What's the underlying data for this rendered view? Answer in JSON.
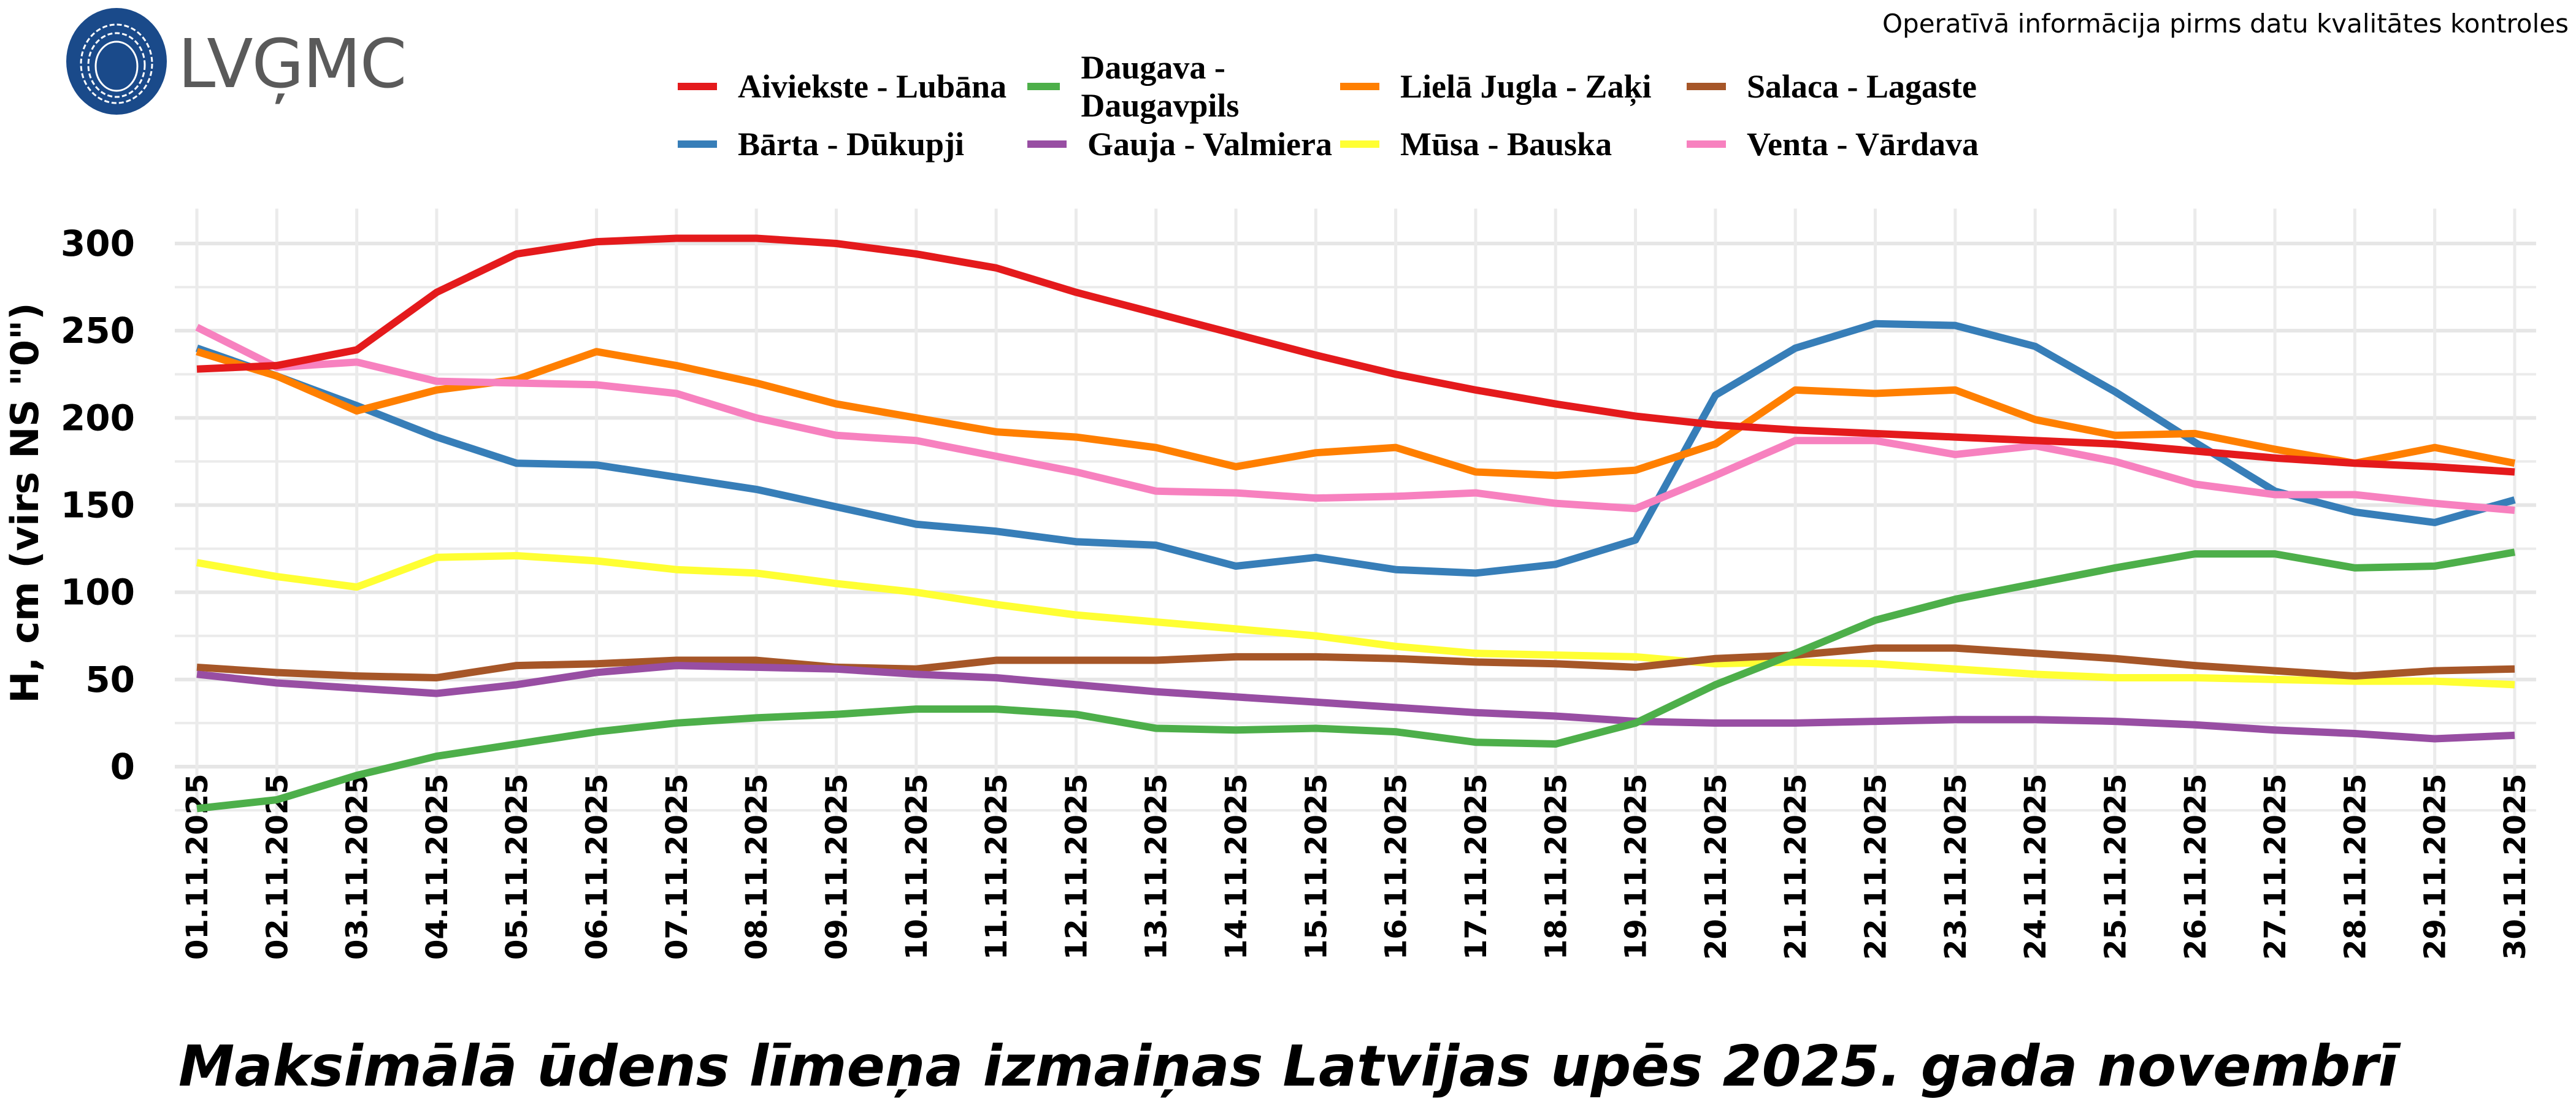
{
  "logo": {
    "text": "LVĢMC",
    "color": "#1a4a8a"
  },
  "note": "Operatīvā informācija pirms datu kvalitātes kontroles",
  "chart_data": {
    "type": "line",
    "title": "Maksimālā ūdens līmeņa izmaiņas Latvijas upēs 2025. gada novembrī",
    "xlabel": "",
    "ylabel": "H, cm (virs NS \"0\")",
    "ylim": [
      -25,
      320
    ],
    "yticks": [
      0,
      50,
      100,
      150,
      200,
      250,
      300
    ],
    "grid": true,
    "legend_position": "top",
    "categories": [
      "01.11.2025",
      "02.11.2025",
      "03.11.2025",
      "04.11.2025",
      "05.11.2025",
      "06.11.2025",
      "07.11.2025",
      "08.11.2025",
      "09.11.2025",
      "10.11.2025",
      "11.11.2025",
      "12.11.2025",
      "13.11.2025",
      "14.11.2025",
      "15.11.2025",
      "16.11.2025",
      "17.11.2025",
      "18.11.2025",
      "19.11.2025",
      "20.11.2025",
      "21.11.2025",
      "22.11.2025",
      "23.11.2025",
      "24.11.2025",
      "25.11.2025",
      "26.11.2025",
      "27.11.2025",
      "28.11.2025",
      "29.11.2025",
      "30.11.2025"
    ],
    "series": [
      {
        "name": "Aiviekste - Lubāna",
        "color": "#e41a1c",
        "values": [
          228,
          230,
          239,
          272,
          294,
          301,
          303,
          303,
          300,
          294,
          286,
          272,
          260,
          248,
          236,
          225,
          216,
          208,
          201,
          196,
          193,
          191,
          189,
          187,
          185,
          181,
          177,
          174,
          172,
          169
        ]
      },
      {
        "name": "Bārta - Dūkupji",
        "color": "#377eb8",
        "values": [
          240,
          224,
          207,
          189,
          174,
          173,
          166,
          159,
          149,
          139,
          135,
          129,
          127,
          115,
          120,
          113,
          111,
          116,
          130,
          213,
          240,
          254,
          253,
          241,
          215,
          186,
          158,
          146,
          140,
          153
        ]
      },
      {
        "name": "Daugava - Daugavpils",
        "color": "#4daf4a",
        "values": [
          -24,
          -19,
          -5,
          6,
          13,
          20,
          25,
          28,
          30,
          33,
          33,
          30,
          22,
          21,
          22,
          20,
          14,
          13,
          25,
          47,
          65,
          84,
          96,
          105,
          114,
          122,
          122,
          114,
          115,
          123
        ]
      },
      {
        "name": "Gauja - Valmiera",
        "color": "#984ea3",
        "values": [
          53,
          48,
          45,
          42,
          47,
          54,
          58,
          57,
          56,
          53,
          51,
          47,
          43,
          40,
          37,
          34,
          31,
          29,
          26,
          25,
          25,
          26,
          27,
          27,
          26,
          24,
          21,
          19,
          16,
          18
        ]
      },
      {
        "name": "Lielā Jugla - Zaķi",
        "color": "#ff7f00",
        "values": [
          238,
          224,
          204,
          216,
          222,
          238,
          230,
          220,
          208,
          200,
          192,
          189,
          183,
          172,
          180,
          183,
          169,
          167,
          170,
          185,
          216,
          214,
          216,
          199,
          190,
          191,
          182,
          174,
          183,
          174
        ]
      },
      {
        "name": "Mūsa - Bauska",
        "color": "#ffff33",
        "values": [
          117,
          109,
          103,
          120,
          121,
          118,
          113,
          111,
          105,
          100,
          93,
          87,
          83,
          79,
          75,
          69,
          65,
          64,
          63,
          59,
          60,
          59,
          56,
          53,
          51,
          51,
          50,
          49,
          49,
          47
        ]
      },
      {
        "name": "Salaca - Lagaste",
        "color": "#a65628",
        "values": [
          57,
          54,
          52,
          51,
          58,
          59,
          61,
          61,
          57,
          56,
          61,
          61,
          61,
          63,
          63,
          62,
          60,
          59,
          57,
          62,
          64,
          68,
          68,
          65,
          62,
          58,
          55,
          52,
          55,
          56
        ]
      },
      {
        "name": "Venta - Vārdava",
        "color": "#f781bf",
        "values": [
          252,
          229,
          232,
          221,
          220,
          219,
          214,
          200,
          190,
          187,
          178,
          169,
          158,
          157,
          154,
          155,
          157,
          151,
          148,
          167,
          187,
          187,
          179,
          184,
          175,
          162,
          156,
          156,
          151,
          147
        ]
      }
    ]
  }
}
